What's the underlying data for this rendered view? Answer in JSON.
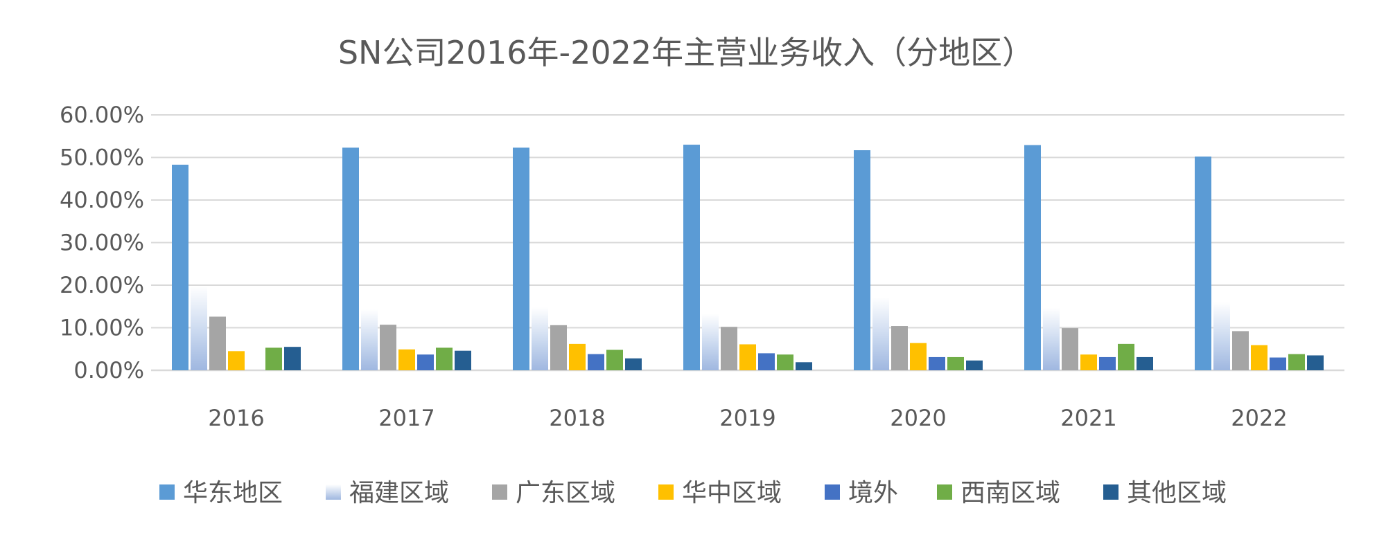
{
  "chart_data": {
    "type": "bar",
    "title": "SN公司2016年-2022年主营业务收入（分地区）",
    "xlabel": "",
    "ylabel": "",
    "ylim": [
      0,
      60
    ],
    "yticks": [
      "0.00%",
      "10.00%",
      "20.00%",
      "30.00%",
      "40.00%",
      "50.00%",
      "60.00%"
    ],
    "grid": true,
    "legend_position": "bottom",
    "categories": [
      "2016",
      "2017",
      "2018",
      "2019",
      "2020",
      "2021",
      "2022"
    ],
    "series": [
      {
        "name": "华东地区",
        "color": "#5b9bd5",
        "gradient": false,
        "values": [
          48.3,
          52.3,
          52.3,
          53.0,
          51.7,
          52.9,
          50.2
        ]
      },
      {
        "name": "福建区域",
        "color": "#b4c7e7",
        "gradient": true,
        "values": [
          19.8,
          14.3,
          14.8,
          13.3,
          17.2,
          14.7,
          16.0
        ]
      },
      {
        "name": "广东区域",
        "color": "#a5a5a5",
        "gradient": false,
        "values": [
          12.6,
          10.7,
          10.6,
          10.2,
          10.4,
          9.9,
          9.2
        ]
      },
      {
        "name": "华中区域",
        "color": "#ffc000",
        "gradient": false,
        "values": [
          4.5,
          4.9,
          6.2,
          6.1,
          6.4,
          3.7,
          5.9
        ]
      },
      {
        "name": "境外",
        "color": "#4472c4",
        "gradient": false,
        "values": [
          0.0,
          3.7,
          3.8,
          4.0,
          3.1,
          3.1,
          3.0
        ]
      },
      {
        "name": "西南区域",
        "color": "#70ad47",
        "gradient": false,
        "values": [
          5.3,
          5.3,
          4.8,
          3.7,
          3.1,
          6.2,
          3.8
        ]
      },
      {
        "name": "其他区域",
        "color": "#255e91",
        "gradient": false,
        "values": [
          5.5,
          4.6,
          2.8,
          1.9,
          2.3,
          3.1,
          3.5
        ]
      }
    ]
  }
}
